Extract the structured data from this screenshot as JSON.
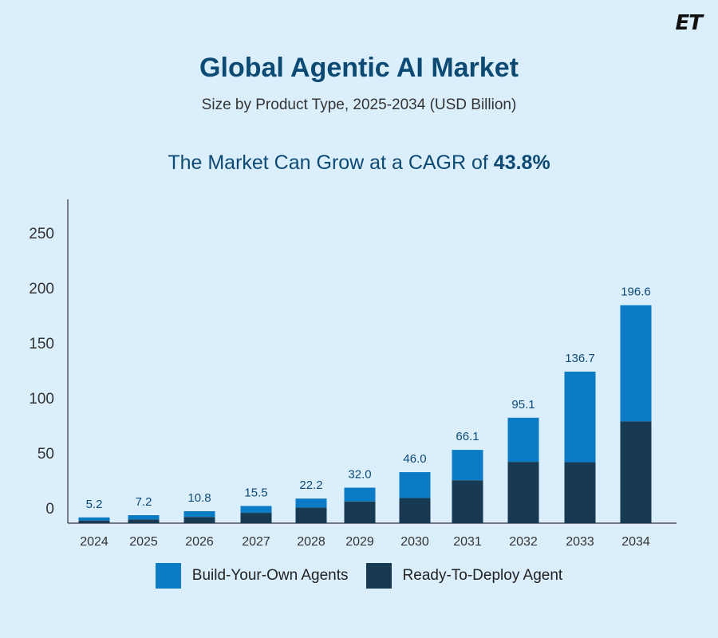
{
  "logo": "ET",
  "chart_data": {
    "type": "bar",
    "stacked": true,
    "title": "Global Agentic AI Market",
    "subtitle": "Size by Product Type, 2025-2034 (USD Billion)",
    "annotation": {
      "text": "The Market Can Grow at a CAGR of ",
      "value": "43.8%"
    },
    "categories": [
      "2024",
      "2025",
      "2026",
      "2027",
      "2028",
      "2029",
      "2030",
      "2031",
      "2032",
      "2033",
      "2034"
    ],
    "totals": [
      5.2,
      7.2,
      10.8,
      15.5,
      22.2,
      32.0,
      46.0,
      66.1,
      95.1,
      136.7,
      196.6
    ],
    "total_labels": [
      "5.2",
      "7.2",
      "10.8",
      "15.5",
      "22.2",
      "32.0",
      "46.0",
      "66.1",
      "95.1",
      "136.7",
      "196.6"
    ],
    "series": [
      {
        "name": "Ready-To-Deploy Agent",
        "color": "#173a52",
        "values": [
          2.4,
          3.4,
          5.6,
          9.3,
          14.1,
          19.6,
          22.7,
          38.7,
          55.3,
          55.0,
          91.8
        ]
      },
      {
        "name": "Build-Your-Own Agents",
        "color": "#0b7bc6",
        "values": [
          2.8,
          3.8,
          5.2,
          6.2,
          8.1,
          12.4,
          23.3,
          27.4,
          39.8,
          81.7,
          104.8
        ]
      }
    ],
    "yticks": [
      0,
      50,
      100,
      150,
      200,
      250
    ],
    "ylim": [
      0,
      260
    ],
    "xlabel": "",
    "ylabel": "",
    "grid": false,
    "legend_position": "bottom"
  }
}
